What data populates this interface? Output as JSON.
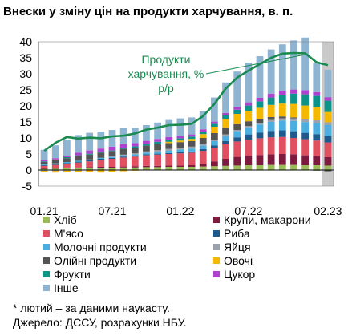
{
  "title": "Внески у зміну цін на продукти харчування, в. п.",
  "chart_data": {
    "type": "bar",
    "stacked": true,
    "ylim": [
      -5,
      40
    ],
    "yticks": [
      -5,
      0,
      5,
      10,
      15,
      20,
      25,
      30,
      35,
      40
    ],
    "xticks": [
      "01.21",
      "07.21",
      "01.22",
      "07.22",
      "02.23"
    ],
    "categories": [
      "01.21",
      "02.21",
      "03.21",
      "04.21",
      "05.21",
      "06.21",
      "07.21",
      "08.21",
      "09.21",
      "10.21",
      "11.21",
      "12.21",
      "01.22",
      "02.22",
      "03.22",
      "04.22",
      "05.22",
      "06.22",
      "07.22",
      "08.22",
      "09.22",
      "10.22",
      "11.22",
      "12.22",
      "01.23",
      "02.23"
    ],
    "series": [
      {
        "name": "Хліб",
        "color": "#9bbb59",
        "values": [
          0.3,
          0.4,
          0.5,
          0.5,
          0.6,
          0.7,
          0.7,
          0.8,
          0.8,
          0.9,
          0.9,
          1.0,
          1.0,
          1.0,
          1.1,
          1.2,
          1.3,
          1.4,
          1.5,
          1.5,
          1.6,
          1.6,
          1.6,
          1.5,
          1.5,
          1.4
        ]
      },
      {
        "name": "Крупи, макарони",
        "color": "#7f1a3f",
        "values": [
          0.2,
          0.2,
          0.3,
          0.3,
          0.3,
          0.3,
          0.3,
          0.3,
          0.4,
          0.4,
          0.4,
          0.4,
          0.4,
          0.5,
          0.8,
          1.5,
          2.2,
          2.7,
          3.0,
          3.2,
          3.3,
          3.4,
          3.3,
          3.1,
          2.9,
          2.6
        ]
      },
      {
        "name": "М'ясо",
        "color": "#e05060",
        "values": [
          0.8,
          1.0,
          1.2,
          1.5,
          1.8,
          2.2,
          2.5,
          2.8,
          3.0,
          3.3,
          3.5,
          3.6,
          3.8,
          3.9,
          4.1,
          4.3,
          4.5,
          4.8,
          5.0,
          5.2,
          5.3,
          5.3,
          5.1,
          5.0,
          4.8,
          4.6
        ]
      },
      {
        "name": "Риба",
        "color": "#1f5a8c",
        "values": [
          0.2,
          0.2,
          0.2,
          0.3,
          0.3,
          0.3,
          0.3,
          0.3,
          0.3,
          0.3,
          0.3,
          0.3,
          0.4,
          0.4,
          0.5,
          0.7,
          1.0,
          1.3,
          1.6,
          1.8,
          2.0,
          2.1,
          2.1,
          2.0,
          2.0,
          1.9
        ]
      },
      {
        "name": "Молочні продукти",
        "color": "#4aaee0",
        "values": [
          0.2,
          0.3,
          0.3,
          0.3,
          0.3,
          0.3,
          0.3,
          0.4,
          0.4,
          0.5,
          0.6,
          0.7,
          0.8,
          0.9,
          1.1,
          1.3,
          1.6,
          1.9,
          2.2,
          2.5,
          2.8,
          3.0,
          3.2,
          3.3,
          3.4,
          3.5
        ]
      },
      {
        "name": "Яйця",
        "color": "#9aa3ad",
        "values": [
          -0.3,
          -0.3,
          -0.2,
          -0.2,
          -0.1,
          0.0,
          0.1,
          0.2,
          0.3,
          0.4,
          0.5,
          0.6,
          0.6,
          0.6,
          0.6,
          0.5,
          0.5,
          0.4,
          0.4,
          0.5,
          0.6,
          0.7,
          0.8,
          0.9,
          0.9,
          0.9
        ]
      },
      {
        "name": "Олійні продукти",
        "color": "#545454",
        "values": [
          0.8,
          1.0,
          1.2,
          1.4,
          1.5,
          1.6,
          1.7,
          1.8,
          1.8,
          1.8,
          1.8,
          1.8,
          1.7,
          1.7,
          1.8,
          2.0,
          2.0,
          1.8,
          1.5,
          1.2,
          0.9,
          0.6,
          0.3,
          0.0,
          -0.2,
          -0.4
        ]
      },
      {
        "name": "Овочі",
        "color": "#f5b800",
        "values": [
          -0.4,
          -0.5,
          -0.4,
          -0.3,
          -0.5,
          -0.8,
          -0.6,
          -0.4,
          -0.2,
          0.0,
          0.2,
          0.4,
          0.5,
          0.7,
          1.2,
          2.0,
          2.8,
          3.2,
          3.3,
          3.5,
          3.8,
          4.0,
          4.2,
          4.3,
          4.0,
          3.2
        ]
      },
      {
        "name": "Фрукти",
        "color": "#0d9488",
        "values": [
          0.2,
          0.2,
          0.3,
          0.3,
          0.3,
          0.2,
          0.2,
          0.3,
          0.4,
          0.5,
          0.6,
          0.7,
          0.7,
          0.7,
          0.8,
          0.9,
          1.1,
          1.3,
          1.6,
          2.0,
          2.3,
          2.7,
          3.2,
          3.5,
          3.6,
          3.5
        ]
      },
      {
        "name": "Цукор",
        "color": "#b040d0",
        "values": [
          0.3,
          0.4,
          0.5,
          0.8,
          1.0,
          1.1,
          1.2,
          1.1,
          1.0,
          1.0,
          0.9,
          0.8,
          0.8,
          0.7,
          0.7,
          0.7,
          0.8,
          0.9,
          1.0,
          1.1,
          1.2,
          1.3,
          1.3,
          1.3,
          1.2,
          1.1
        ]
      },
      {
        "name": "Інше",
        "color": "#8fb4d2",
        "values": [
          3.3,
          4.0,
          4.9,
          5.5,
          5.5,
          5.3,
          5.2,
          5.0,
          4.8,
          4.9,
          5.1,
          5.3,
          5.4,
          5.3,
          5.6,
          7.5,
          9.5,
          11.0,
          12.4,
          13.0,
          13.8,
          14.5,
          15.3,
          16.4,
          9.1,
          8.6
        ]
      }
    ],
    "line": {
      "name": "Продукти харчування, % р/р",
      "color": "#1a8a50",
      "values": [
        6.0,
        8.5,
        10.3,
        9.8,
        10.1,
        9.9,
        10.5,
        10.7,
        11.4,
        12.6,
        13.2,
        14.0,
        14.1,
        14.4,
        16.8,
        20.6,
        25.4,
        28.8,
        31.0,
        33.0,
        35.0,
        36.3,
        36.5,
        36.4,
        33.6,
        32.7
      ]
    },
    "annotation": [
      "Продукти",
      "харчування, %",
      "р/р"
    ],
    "shaded_last_period": true
  },
  "legend": [
    {
      "label": "Хліб",
      "color": "#9bbb59"
    },
    {
      "label": "Крупи, макарони",
      "color": "#7f1a3f"
    },
    {
      "label": "М'ясо",
      "color": "#e05060"
    },
    {
      "label": "Риба",
      "color": "#1f5a8c"
    },
    {
      "label": "Молочні продукти",
      "color": "#4aaee0"
    },
    {
      "label": "Яйця",
      "color": "#9aa3ad"
    },
    {
      "label": "Олійні продукти",
      "color": "#545454"
    },
    {
      "label": "Овочі",
      "color": "#f5b800"
    },
    {
      "label": "Фрукти",
      "color": "#0d9488"
    },
    {
      "label": "Цукор",
      "color": "#b040d0"
    },
    {
      "label": "Інше",
      "color": "#8fb4d2"
    }
  ],
  "footnotes": {
    "note": "* лютий – за даними наукасту.",
    "source": "Джерело: ДССУ, розрахунки НБУ."
  }
}
